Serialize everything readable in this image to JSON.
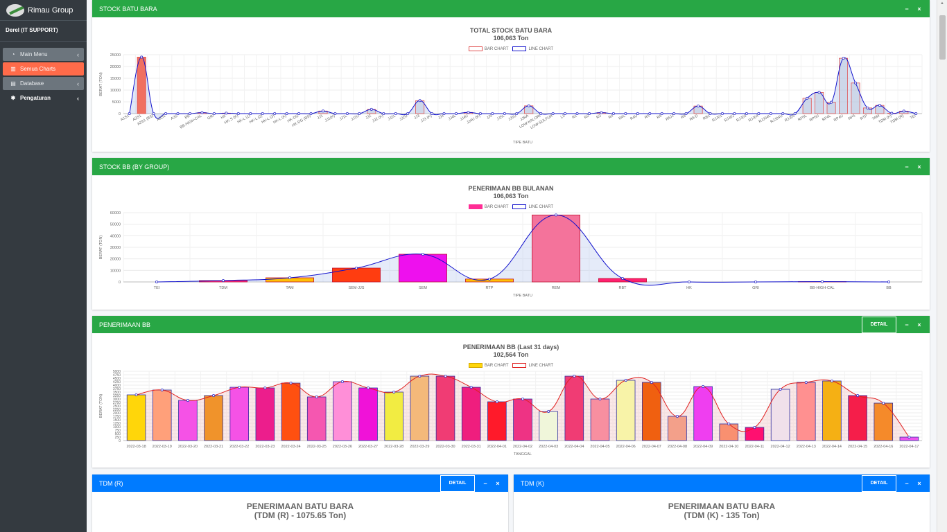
{
  "brand": {
    "name": "Rimau Group"
  },
  "user": {
    "name": "Derel (IT SUPPORT)"
  },
  "nav": [
    {
      "label": "Main Menu",
      "icon": "dashboard-icon"
    },
    {
      "label": "Semua Charts",
      "icon": "chart-icon"
    },
    {
      "label": "Database",
      "icon": "database-icon"
    },
    {
      "label": "Pengaturan",
      "icon": "gear-icon"
    }
  ],
  "cards": {
    "stock": {
      "header": "STOCK BATU BARA"
    },
    "group": {
      "header": "STOCK BB (BY GROUP)"
    },
    "penerimaan": {
      "header": "PENERIMAAN BB",
      "detail": "DETAIL"
    },
    "tdmr": {
      "header": "TDM (R)",
      "detail": "DETAIL",
      "title1": "PENERIMAAN BATU BARA",
      "title2": "(TDM (R) - 1075.65 Ton)"
    },
    "tdmk": {
      "header": "TDM (K)",
      "detail": "DETAIL",
      "title1": "PENERIMAAN BATU BARA",
      "title2": "(TDM (K) - 135 Ton)"
    }
  },
  "colors": {
    "green": "#28a745",
    "blue": "#007bff",
    "active": "#ff6b4a",
    "sidebar": "#343a40"
  },
  "chart_data": [
    {
      "type": "bar",
      "title": "TOTAL STOCK BATU BARA",
      "subtitle": "106,063 Ton",
      "legend": [
        "BAR CHART",
        "LINE CHART"
      ],
      "xlabel": "TIPE BATU",
      "ylabel": "BERAT (TON)",
      "ylim": [
        0,
        25000
      ],
      "yticks": [
        0,
        5000,
        10000,
        15000,
        20000,
        25000
      ],
      "categories": [
        "A1S1",
        "A2S1",
        "A2S1 (BS)",
        "A3S1",
        "A3S",
        "BB",
        "BB-HIGH-CAL",
        "GRI",
        "HK",
        "HK-S (K)",
        "HK-L (1)",
        "HK-L (2)",
        "HK-L (3)",
        "HK-L (K)",
        "HK-DG",
        "HK-DG (BS)",
        "JJ1",
        "JJ1(K)",
        "JJ1L",
        "JJ1U",
        "JJ2",
        "JJ2 (K)",
        "JJ2L",
        "JJ2U",
        "JJ3",
        "JJ3 (K)",
        "JJ4",
        "JJ4L",
        "JJ4U",
        "JJ4U (K)",
        "JJ5",
        "JJ5L",
        "JJ5U",
        "JJRA",
        "LOW-KALORI",
        "LOW-SULFUR",
        "L3",
        "R1",
        "R2",
        "R3",
        "R4",
        "R4L",
        "R4U",
        "R5",
        "R6",
        "R6JJ",
        "R8",
        "R8-D",
        "RB1",
        "RJJ01",
        "RJJ02",
        "RJJ03",
        "RJJ04",
        "RJJ04L",
        "RJJ04U",
        "RJJ05",
        "RP5L",
        "RP5U",
        "RP4L",
        "RP4U",
        "RP5",
        "RTP",
        "TAM",
        "TDM (K)",
        "TDM (R)",
        "TEI"
      ],
      "values": [
        0,
        24000,
        0,
        0,
        0,
        0,
        400,
        0,
        200,
        0,
        0,
        0,
        0,
        0,
        0,
        0,
        1100,
        0,
        0,
        0,
        1800,
        0,
        0,
        0,
        5500,
        0,
        0,
        0,
        500,
        0,
        0,
        0,
        0,
        3300,
        0,
        0,
        0,
        0,
        0,
        400,
        0,
        0,
        0,
        0,
        0,
        0,
        0,
        3200,
        0,
        0,
        0,
        0,
        0,
        0,
        0,
        0,
        6500,
        9000,
        4800,
        23500,
        13000,
        2400,
        3500,
        135,
        1075,
        0
      ]
    },
    {
      "type": "bar",
      "title": "PENERIMAAN BB BULANAN",
      "subtitle": "106,063 Ton",
      "legend": [
        "BAR CHART",
        "LINE CHART"
      ],
      "xlabel": "TIPE BATU",
      "ylabel": "BERAT (TON)",
      "ylim": [
        0,
        60000
      ],
      "yticks": [
        0,
        10000,
        20000,
        30000,
        40000,
        50000,
        60000
      ],
      "categories": [
        "TEI",
        "TDM",
        "TAM",
        "SEM-JJS",
        "SEM",
        "RTP",
        "REM",
        "RBT",
        "HK",
        "GRI",
        "BB-HIGH-CAL",
        "BB"
      ],
      "values": [
        0,
        1200,
        3600,
        12000,
        24000,
        2500,
        58000,
        3000,
        0,
        0,
        300,
        0
      ],
      "colors": [
        "#ff2d95",
        "#ff2d95",
        "#ffc107",
        "#ff3d10",
        "#ee10ee",
        "#ffc107",
        "#f4739b",
        "#ff2070",
        "#ff2d95",
        "#ff2d95",
        "#ff2d95",
        "#ff2d95"
      ]
    },
    {
      "type": "bar",
      "title": "PENERIMAAN BB (Last 31 days)",
      "subtitle": "102,564 Ton",
      "legend": [
        "BAR CHART",
        "LINE CHART"
      ],
      "xlabel": "TANGGAL",
      "ylabel": "BERAT (TON)",
      "ylim": [
        0,
        5000
      ],
      "yticks": [
        0,
        250,
        500,
        750,
        1000,
        1250,
        1500,
        1750,
        2000,
        2250,
        2500,
        2750,
        3000,
        3250,
        3500,
        3750,
        4000,
        4250,
        4500,
        4750,
        5000
      ],
      "categories": [
        "2022-03-18",
        "2022-03-19",
        "2022-03-20",
        "2022-03-21",
        "2022-03-22",
        "2022-03-23",
        "2022-03-24",
        "2022-03-25",
        "2022-03-26",
        "2022-03-27",
        "2022-03-28",
        "2022-03-29",
        "2022-03-30",
        "2022-03-31",
        "2022-04-01",
        "2022-04-02",
        "2022-04-03",
        "2022-04-04",
        "2022-04-05",
        "2022-04-06",
        "2022-04-07",
        "2022-04-08",
        "2022-04-09",
        "2022-04-10",
        "2022-04-11",
        "2022-04-12",
        "2022-04-13",
        "2022-04-14",
        "2022-04-15",
        "2022-04-16",
        "2022-04-17"
      ],
      "values": [
        3300,
        3650,
        2900,
        3250,
        3850,
        3800,
        4150,
        3150,
        4250,
        3800,
        3500,
        4650,
        4650,
        3850,
        2800,
        3000,
        2100,
        4650,
        3000,
        4350,
        4200,
        1750,
        3900,
        1200,
        950,
        3700,
        4200,
        4300,
        3250,
        2700,
        250
      ],
      "colors": [
        "#ffd60a",
        "#ffa07a",
        "#f552e6",
        "#f0932b",
        "#f552e6",
        "#ec1e8c",
        "#ff5010",
        "#f557b0",
        "#ff8fd8",
        "#f012d8",
        "#f2ec42",
        "#f4b97a",
        "#f03c74",
        "#ef1e7e",
        "#ff1a2a",
        "#ee3384",
        "#f0f6da",
        "#f03c74",
        "#f88fa0",
        "#f8f3a8",
        "#f06010",
        "#f3a08a",
        "#ef3ef0",
        "#f99070",
        "#ff1070",
        "#f0e0ea",
        "#ff9090",
        "#f5b014",
        "#f51e4a",
        "#f58a2a",
        "#ee55ee"
      ]
    }
  ]
}
